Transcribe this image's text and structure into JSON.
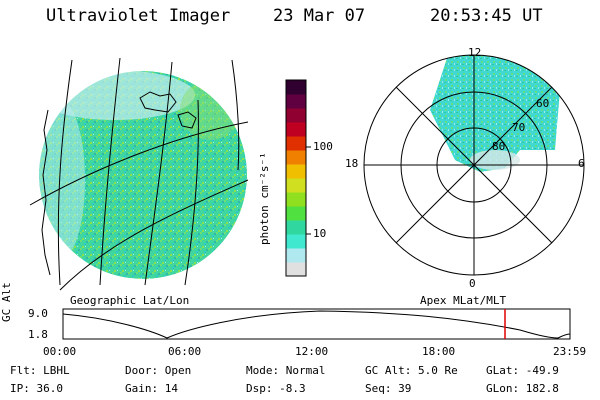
{
  "header": {
    "instrument": "Ultraviolet Imager",
    "date": "23 Mar 07",
    "time": "20:53:45 UT"
  },
  "left_panel": {
    "caption": "Geographic Lat/Lon"
  },
  "colorbar": {
    "unit_label": "photon cm⁻²s⁻¹",
    "ticks": [
      "100",
      "10"
    ],
    "colors": [
      "#e0e0e0",
      "#b0e8f0",
      "#40e8d0",
      "#30d8a0",
      "#50e040",
      "#90e020",
      "#d0e020",
      "#f0c000",
      "#f08000",
      "#e03000",
      "#c00020",
      "#900030",
      "#600040",
      "#300030"
    ]
  },
  "right_panel": {
    "caption": "Apex MLat/MLT",
    "mlt_labels": {
      "top": "12",
      "left": "18",
      "right": "6",
      "bottom": "0"
    },
    "lat_labels": [
      "60",
      "70",
      "80"
    ]
  },
  "timeline": {
    "ylabel": "GC Alt",
    "yticks": [
      "9.0",
      "1.8"
    ],
    "xticks": [
      "00:00",
      "06:00",
      "12:00",
      "18:00",
      "23:59"
    ],
    "marker_time": "20:53",
    "marker_color": "#e00000"
  },
  "status": {
    "row1": [
      {
        "key": "Flt:",
        "value": "LBHL"
      },
      {
        "key": "Door:",
        "value": "Open"
      },
      {
        "key": "Mode:",
        "value": "Normal"
      },
      {
        "key": "GC Alt:",
        "value": "5.0 Re"
      },
      {
        "key": "GLat:",
        "value": "-49.9"
      }
    ],
    "row2": [
      {
        "key": "IP:",
        "value": "36.0"
      },
      {
        "key": "Gain:",
        "value": "14"
      },
      {
        "key": "Dsp:",
        "value": "-8.3"
      },
      {
        "key": "Seq:",
        "value": "39"
      },
      {
        "key": "GLon:",
        "value": "182.8"
      }
    ]
  }
}
